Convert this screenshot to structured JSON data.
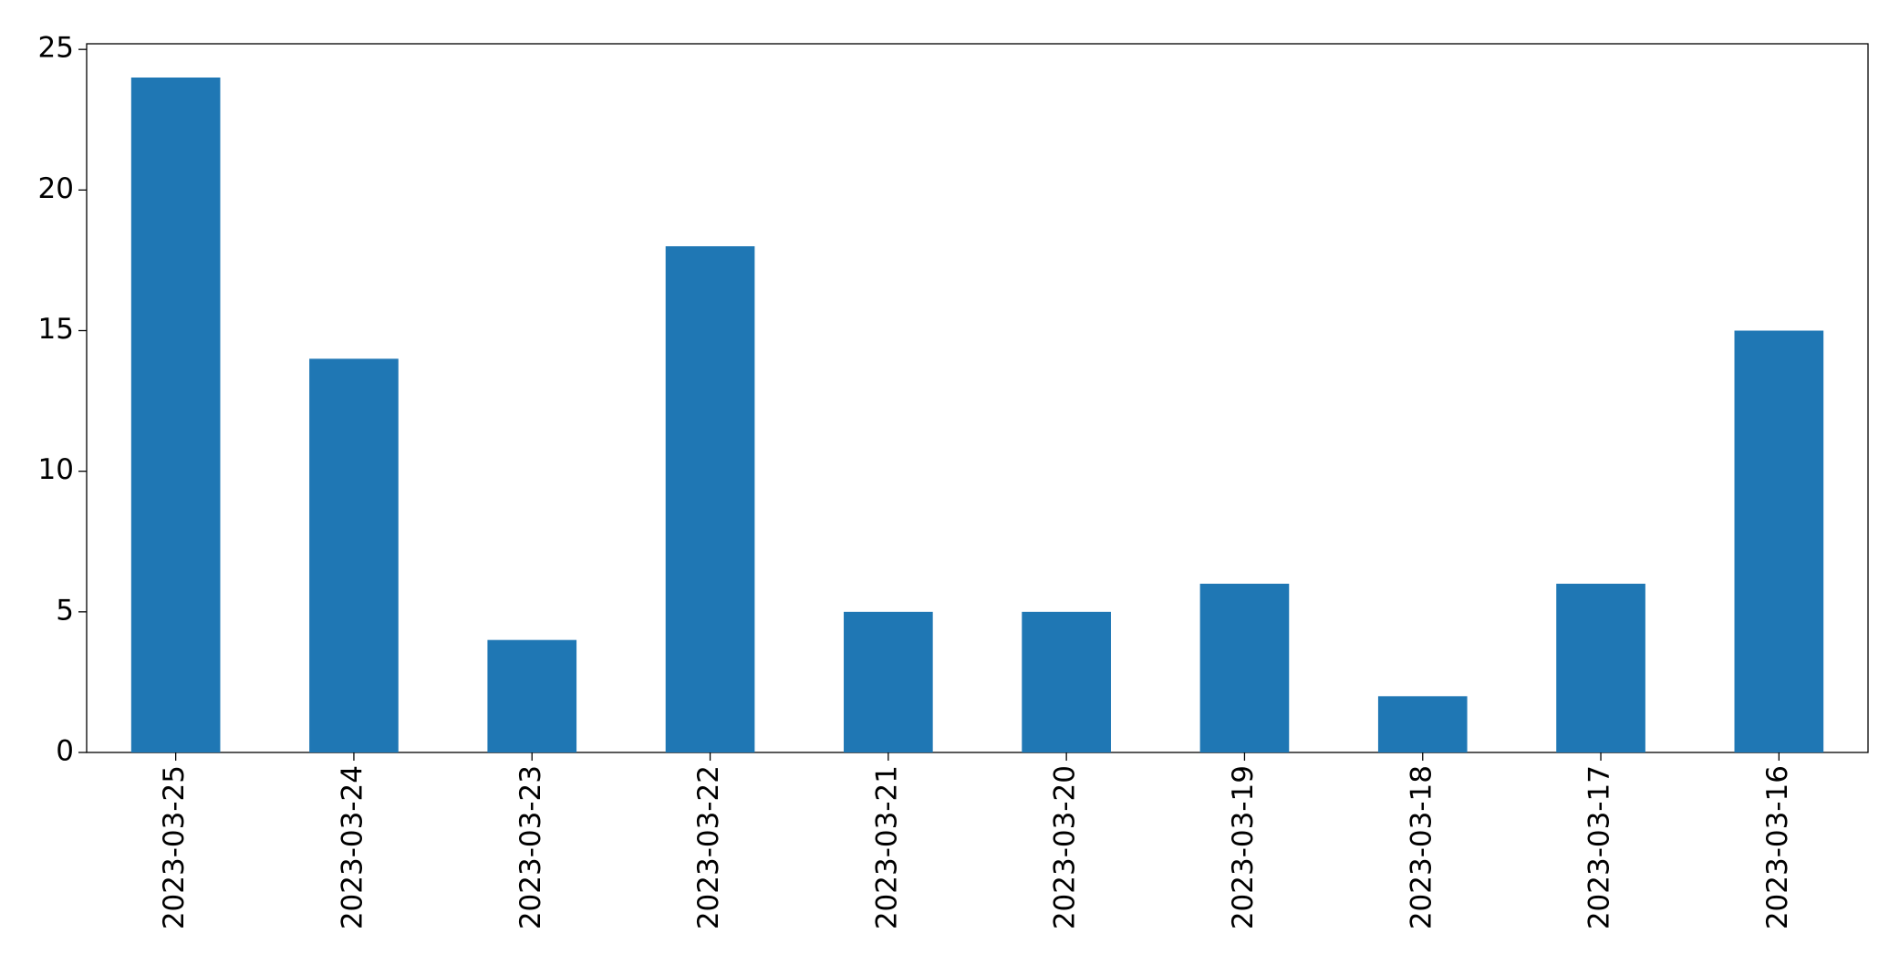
{
  "chart_data": {
    "type": "bar",
    "categories": [
      "2023-03-25",
      "2023-03-24",
      "2023-03-23",
      "2023-03-22",
      "2023-03-21",
      "2023-03-20",
      "2023-03-19",
      "2023-03-18",
      "2023-03-17",
      "2023-03-16"
    ],
    "values": [
      24,
      14,
      4,
      18,
      5,
      5,
      6,
      2,
      6,
      15
    ],
    "color": "#1f77b4",
    "ylim": [
      0,
      25.2
    ],
    "yticks": [
      0,
      5,
      10,
      15,
      20,
      25
    ],
    "grid": false
  }
}
